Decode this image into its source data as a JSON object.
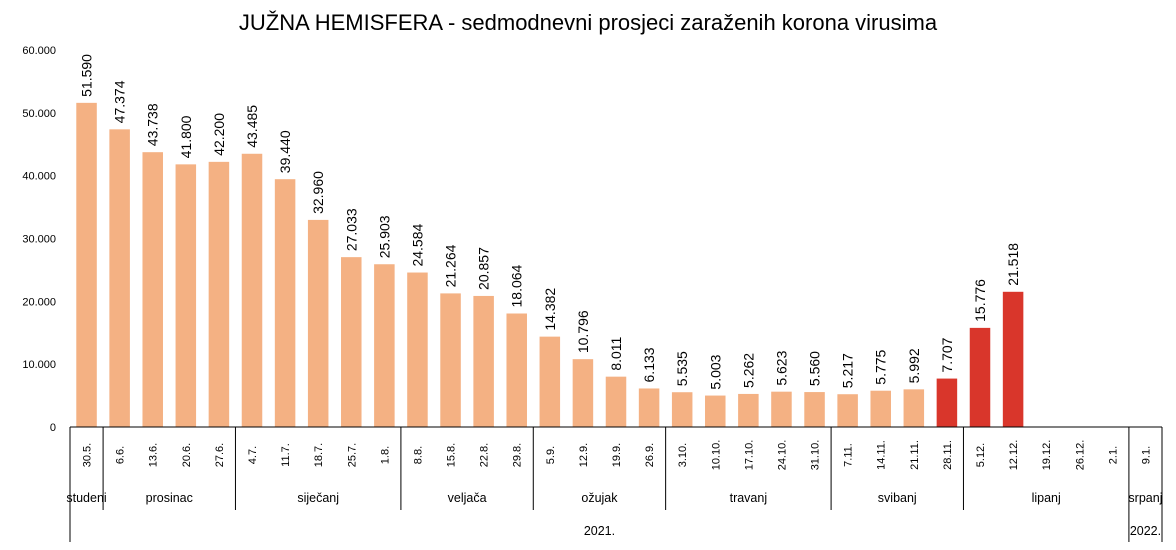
{
  "chart_data": {
    "type": "bar",
    "title": "JUŽNA HEMISFERA - sedmodnevni prosjeci zaraženih korona virusima",
    "xlabel": "",
    "ylabel": "",
    "ylim": [
      0,
      60000
    ],
    "yticks": [
      "0",
      "10.000",
      "20.000",
      "30.000",
      "40.000",
      "50.000",
      "60.000"
    ],
    "ytick_values": [
      0,
      10000,
      20000,
      30000,
      40000,
      50000,
      60000
    ],
    "grid": false,
    "colors": {
      "normal": "#F4B183",
      "highlight": "#D9362B"
    },
    "categories": [
      "30.5.",
      "6.6.",
      "13.6.",
      "20.6.",
      "27.6.",
      "4.7.",
      "11.7.",
      "18.7.",
      "25.7.",
      "1.8.",
      "8.8.",
      "15.8.",
      "22.8.",
      "29.8.",
      "5.9.",
      "12.9.",
      "19.9.",
      "26.9.",
      "3.10.",
      "10.10.",
      "17.10.",
      "24.10.",
      "31.10.",
      "7.11.",
      "14.11.",
      "21.11.",
      "28.11.",
      "5.12.",
      "12.12.",
      "19.12.",
      "26.12.",
      "2.1.",
      "9.1."
    ],
    "values": [
      51590,
      47374,
      43738,
      41800,
      42200,
      43485,
      39440,
      32960,
      27033,
      25903,
      24584,
      21264,
      20857,
      18064,
      14382,
      10796,
      8011,
      6133,
      5535,
      5003,
      5262,
      5623,
      5560,
      5217,
      5775,
      5992,
      7707,
      15776,
      21518,
      null,
      null,
      null,
      null
    ],
    "labels": [
      "51.590",
      "47.374",
      "43.738",
      "41.800",
      "42.200",
      "43.485",
      "39.440",
      "32.960",
      "27.033",
      "25.903",
      "24.584",
      "21.264",
      "20.857",
      "18.064",
      "14.382",
      "10.796",
      "8.011",
      "6.133",
      "5.535",
      "5.003",
      "5.262",
      "5.623",
      "5.560",
      "5.217",
      "5.775",
      "5.992",
      "7.707",
      "15.776",
      "21.518",
      "",
      "",
      "",
      ""
    ],
    "highlight": [
      false,
      false,
      false,
      false,
      false,
      false,
      false,
      false,
      false,
      false,
      false,
      false,
      false,
      false,
      false,
      false,
      false,
      false,
      false,
      false,
      false,
      false,
      false,
      false,
      false,
      false,
      true,
      true,
      true,
      false,
      false,
      false,
      false
    ],
    "groups": [
      {
        "label": "studeni",
        "start": 0,
        "end": 0
      },
      {
        "label": "prosinac",
        "start": 1,
        "end": 4
      },
      {
        "label": "siječanj",
        "start": 5,
        "end": 9
      },
      {
        "label": "veljača",
        "start": 10,
        "end": 13
      },
      {
        "label": "ožujak",
        "start": 14,
        "end": 17
      },
      {
        "label": "travanj",
        "start": 18,
        "end": 22
      },
      {
        "label": "svibanj",
        "start": 23,
        "end": 26
      },
      {
        "label": "lipanj",
        "start": 27,
        "end": 31
      },
      {
        "label": "srpanj",
        "start": 32,
        "end": 32
      }
    ],
    "years": [
      {
        "label": "2021.",
        "start": 0,
        "end": 31
      },
      {
        "label": "2022.",
        "start": 32,
        "end": 32
      }
    ]
  }
}
